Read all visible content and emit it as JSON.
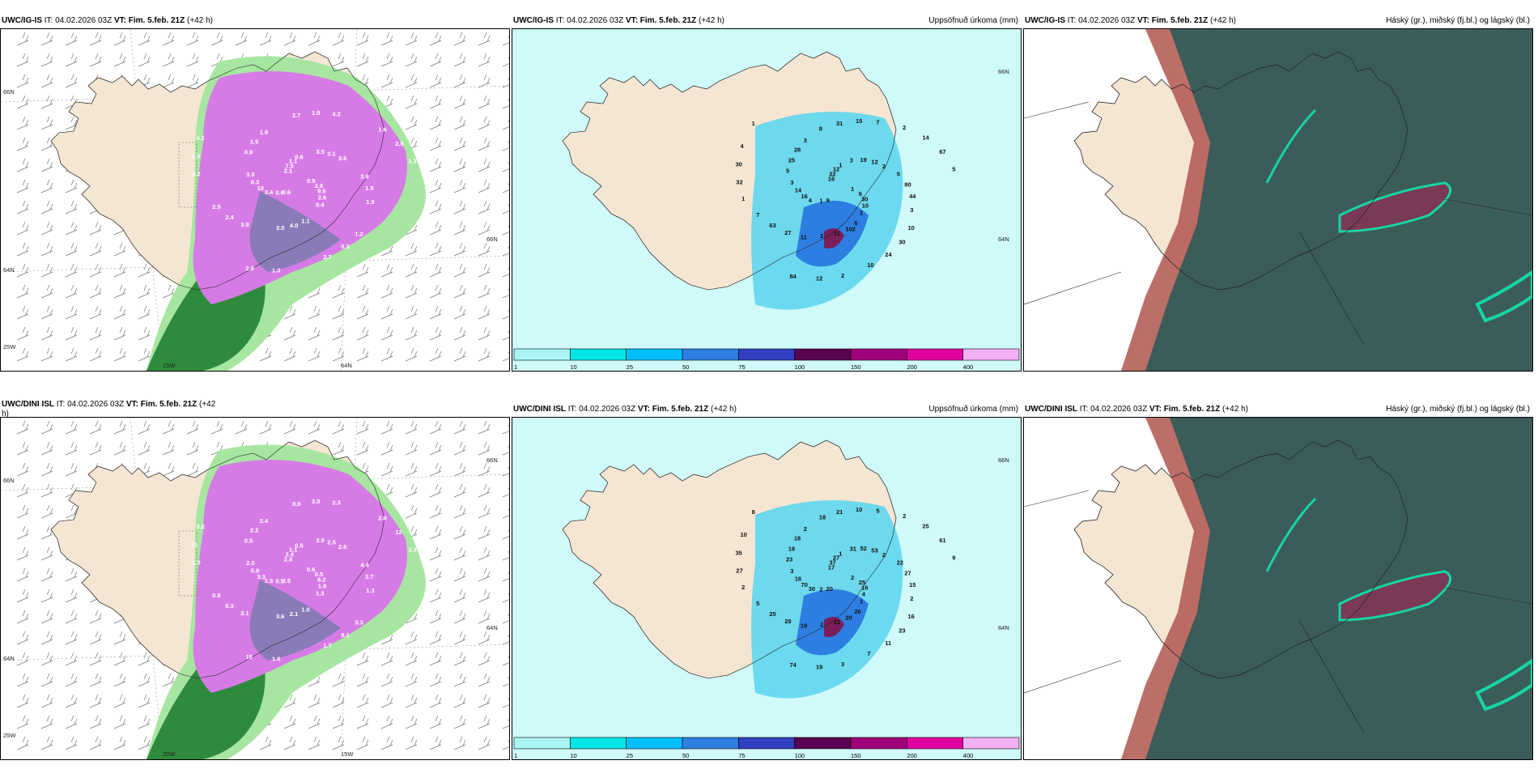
{
  "colors": {
    "land": "#f5e6d3",
    "sea_precip": "#aaf4f4",
    "cloud_dark": "#345c5a",
    "cloud_high": "#b0554f",
    "cloud_green": "#15d6a5",
    "snow_purple": "#d67be6",
    "snow_green": "#2e8b3c"
  },
  "panels": [
    {
      "id": "p1",
      "source": "UWC/IG-IS",
      "it_label": "IT: 04.02.2026 03Z",
      "vt_label": "VT: Fim. 5.feb. 21Z",
      "lead": "(+42 h)",
      "right_title": "",
      "axis_labels": [
        "66N",
        "64N",
        "25W",
        "15W",
        "64N",
        "66N"
      ],
      "values": [
        "0.9",
        "0.6",
        "0.6",
        "0.4",
        "3.0",
        "3.6",
        "3.0",
        "1.9",
        "1.9",
        "2.5",
        "4.2",
        "2.7",
        "4.1",
        "1.3",
        "0.6",
        "1.1",
        "2.6",
        "0.3",
        "3.1",
        "4.0",
        "1.5",
        "1.5",
        "2.4",
        "1.8",
        "0.3",
        "1.3",
        "2.8",
        "2.8",
        "7.5",
        "9.6",
        "10",
        "3.5",
        "1.1",
        "0.9",
        "3.9",
        "3.8",
        "2.7",
        "1.2",
        "0.2",
        "1.6",
        "1.3",
        "2.1",
        "2.6",
        "3.4"
      ]
    },
    {
      "id": "p2",
      "source": "UWC/IG-IS",
      "it_label": "IT: 04.02.2026 03Z",
      "vt_label": "VT: Fim. 5.feb. 21Z",
      "lead": "(+42 h)",
      "right_title": "Uppsöfnuð úrkoma (mm)",
      "axis_labels": [
        "66N",
        "64N"
      ],
      "colorbar_labels": [
        "1",
        "10",
        "25",
        "50",
        "75",
        "100",
        "150",
        "200",
        "400"
      ],
      "values": [
        "1",
        "1",
        "1",
        "1",
        "3",
        "2",
        "2",
        "3",
        "3",
        "7",
        "7",
        "10",
        "4",
        "5",
        "9",
        "12",
        "10",
        "14",
        "12",
        "11",
        "28",
        "44",
        "63",
        "15",
        "24",
        "30",
        "67",
        "84",
        "22",
        "30",
        "16",
        "19",
        "102",
        "25",
        "80",
        "27",
        "31",
        "30",
        "32",
        "14",
        "12",
        "16",
        "6",
        "4",
        "3",
        "6",
        "5",
        "5",
        "11",
        "8",
        "10",
        "1",
        "2",
        "2",
        "1"
      ]
    },
    {
      "id": "p3",
      "source": "UWC/IG-IS",
      "it_label": "IT: 04.02.2026 03Z",
      "vt_label": "VT: Fim. 5.feb. 21Z",
      "lead": "(+42 h)",
      "right_title": "Háský (gr.), miðský (fj.bl.) og lágský (bl.)"
    },
    {
      "id": "p4",
      "source": "UWC/DINI ISL",
      "it_label": "IT: 04.02.2026 03Z",
      "vt_label": "VT: Fim. 5.feb. 21Z",
      "lead": "(+42",
      "lead_wrap": "h)",
      "right_title": "",
      "axis_labels": [
        "66N",
        "64N",
        "25W",
        "20W",
        "15W",
        "64N",
        "66N"
      ],
      "values": [
        "0.6",
        "0.5",
        "0.5",
        "1.3",
        "2.0",
        "2.6",
        "3.6",
        "2.4",
        "1.3",
        "0.9",
        "2.3",
        "1.7",
        "3.2",
        "3.3",
        "2.5",
        "1.1",
        "1.9",
        "5.0",
        "2.5",
        "2.1",
        "2.2",
        "2.7",
        "0.3",
        "3.0",
        "9.1",
        "11",
        "12",
        "15",
        "2.4",
        "8.2",
        "3.3",
        "2.0",
        "1.0",
        "0.5",
        "4.4",
        "2.1",
        "0.9",
        "3.3",
        "1.0",
        "2.8",
        "1.6",
        "2.4",
        "0.5",
        "1.3"
      ]
    },
    {
      "id": "p5",
      "source": "UWC/DINI ISL",
      "it_label": "IT: 04.02.2026 03Z",
      "vt_label": "VT: Fim. 5.feb. 21Z",
      "lead": "(+42 h)",
      "right_title": "Uppsöfnuð úrkoma (mm)",
      "axis_labels": [
        "66N",
        "64N"
      ],
      "colorbar_labels": [
        "1",
        "10",
        "25",
        "50",
        "75",
        "100",
        "150",
        "200",
        "400"
      ],
      "values": [
        "2",
        "2",
        "1",
        "1",
        "3",
        "2",
        "2",
        "2",
        "2",
        "5",
        "5",
        "7",
        "10",
        "9",
        "20",
        "27",
        "4",
        "18",
        "53",
        "21",
        "18",
        "15",
        "25",
        "10",
        "11",
        "35",
        "61",
        "74",
        "37",
        "16",
        "70",
        "52",
        "20",
        "18",
        "27",
        "28",
        "21",
        "23",
        "27",
        "25",
        "19",
        "17",
        "25",
        "30",
        "31",
        "26",
        "23",
        "22",
        "19",
        "18",
        "16",
        "2",
        "2",
        "3",
        "8"
      ]
    },
    {
      "id": "p6",
      "source": "UWC/DINI ISL",
      "it_label": "IT: 04.02.2026 03Z",
      "vt_label": "VT: Fim. 5.feb. 21Z",
      "lead": "(+42 h)",
      "right_title": "Háský (gr.), miðský (fj.bl.) og lágský (bl.)"
    }
  ]
}
